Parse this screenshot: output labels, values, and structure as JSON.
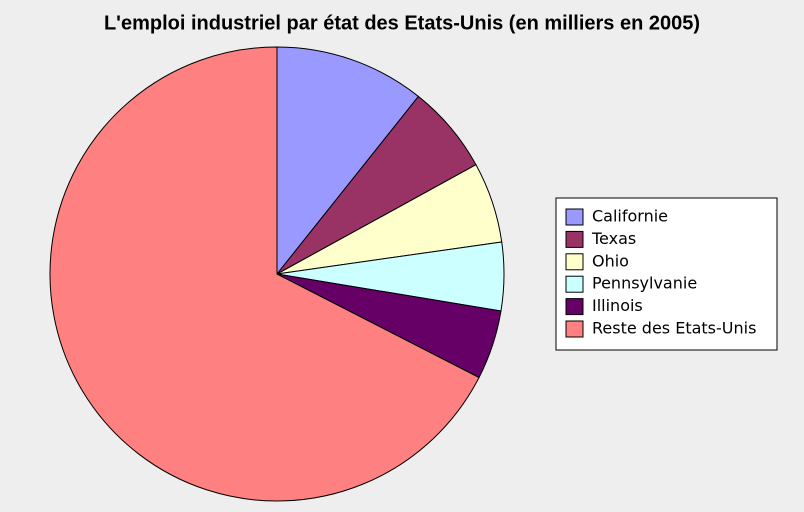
{
  "chart_data": {
    "type": "pie",
    "title": "L'emploi industriel par état des Etats-Unis (en milliers en 2005)",
    "categories": [
      "Californie",
      "Texas",
      "Ohio",
      "Pennsylvanie",
      "Illinois",
      "Reste des Etats-Unis"
    ],
    "values": [
      1520,
      895,
      815,
      690,
      700,
      9580
    ],
    "colors": [
      "#9999ff",
      "#993366",
      "#ffffcc",
      "#ccffff",
      "#660066",
      "#ff8080"
    ],
    "legend": "right"
  }
}
